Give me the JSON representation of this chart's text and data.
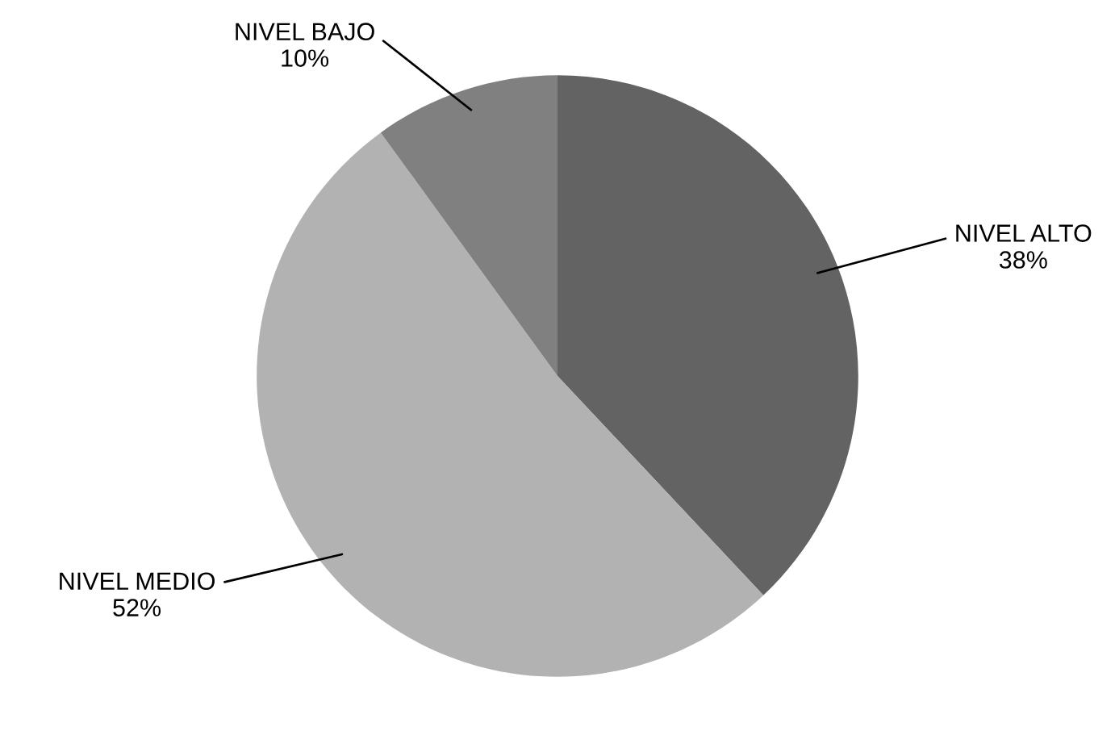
{
  "chart_data": {
    "type": "pie",
    "categories": [
      "NIVEL ALTO",
      "NIVEL MEDIO",
      "NIVEL BAJO"
    ],
    "values": [
      38,
      52,
      10
    ],
    "value_labels": [
      "38%",
      "52%",
      "10%"
    ],
    "colors": [
      "#636363",
      "#b2b2b2",
      "#808080"
    ]
  }
}
